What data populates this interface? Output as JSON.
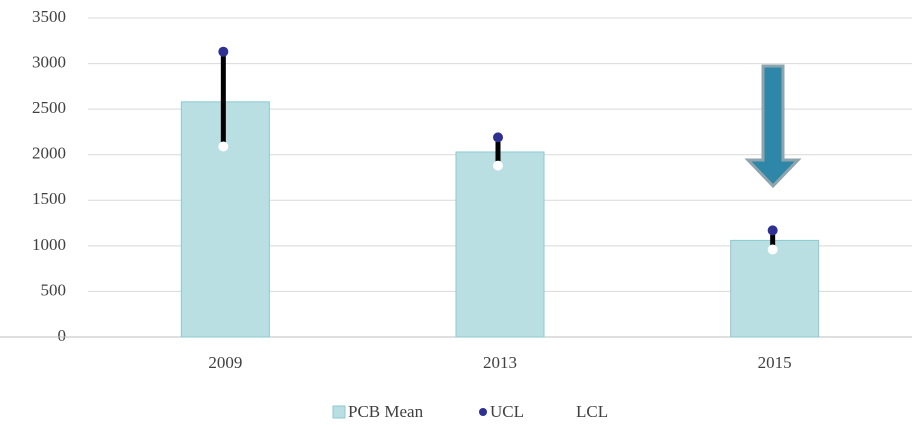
{
  "chart_data": {
    "type": "bar",
    "categories": [
      "2009",
      "2013",
      "2015"
    ],
    "series": [
      {
        "name": "PCB Mean",
        "color": "#b9dfe3",
        "values": [
          2580,
          2030,
          1060
        ]
      },
      {
        "name": "UCL",
        "color": "#2e3192",
        "values": [
          3130,
          2190,
          1170
        ]
      },
      {
        "name": "LCL",
        "color": "#ffffff",
        "values": [
          2090,
          1880,
          960
        ]
      }
    ],
    "ylim": [
      0,
      3500
    ],
    "yticks": [
      0,
      500,
      1000,
      1500,
      2000,
      2500,
      3000,
      3500
    ],
    "grid": true
  }
}
